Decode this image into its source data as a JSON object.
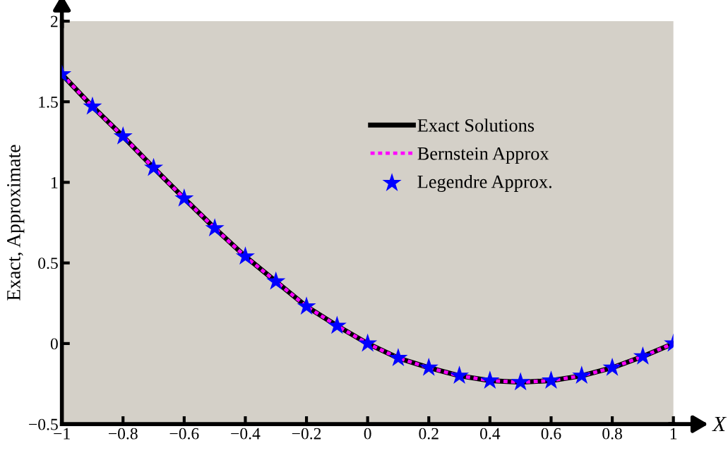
{
  "chart_data": {
    "type": "line",
    "xlabel": "X",
    "ylabel": "Exact, Approximate",
    "x": [
      -1,
      -0.9,
      -0.8,
      -0.7,
      -0.6,
      -0.5,
      -0.4,
      -0.3,
      -0.2,
      -0.1,
      0,
      0.1,
      0.2,
      0.3,
      0.4,
      0.5,
      0.6,
      0.7,
      0.8,
      0.9,
      1
    ],
    "series": [
      {
        "name": "Exact Solutions",
        "color": "#000000",
        "line_style": "solid",
        "marker": "none",
        "values": [
          1.67,
          1.47,
          1.285,
          1.09,
          0.9,
          0.715,
          0.54,
          0.385,
          0.23,
          0.11,
          0,
          -0.09,
          -0.15,
          -0.2,
          -0.23,
          -0.24,
          -0.23,
          -0.2,
          -0.15,
          -0.08,
          0
        ]
      },
      {
        "name": "Bernstein Approx",
        "color": "#ff00ff",
        "line_style": "dashed",
        "marker": "none",
        "values": [
          1.67,
          1.47,
          1.285,
          1.09,
          0.9,
          0.715,
          0.54,
          0.385,
          0.23,
          0.11,
          0,
          -0.09,
          -0.15,
          -0.2,
          -0.23,
          -0.24,
          -0.23,
          -0.2,
          -0.15,
          -0.08,
          0
        ]
      },
      {
        "name": "Legendre Approx.",
        "type": "scatter",
        "color": "#0000ff",
        "marker": "star",
        "values": [
          1.67,
          1.47,
          1.285,
          1.09,
          0.9,
          0.715,
          0.54,
          0.385,
          0.23,
          0.11,
          0,
          -0.09,
          -0.15,
          -0.2,
          -0.23,
          -0.24,
          -0.23,
          -0.2,
          -0.15,
          -0.08,
          0
        ]
      }
    ],
    "xlim": [
      -1,
      1
    ],
    "xticks": [
      -1,
      -0.8,
      -0.6,
      -0.4,
      -0.2,
      0,
      0.2,
      0.4,
      0.6,
      0.8,
      1
    ],
    "ylim": [
      -0.5,
      2
    ],
    "yticks": [
      -0.5,
      0,
      0.5,
      1,
      1.5,
      2
    ],
    "grid": false,
    "legend": "top right"
  }
}
